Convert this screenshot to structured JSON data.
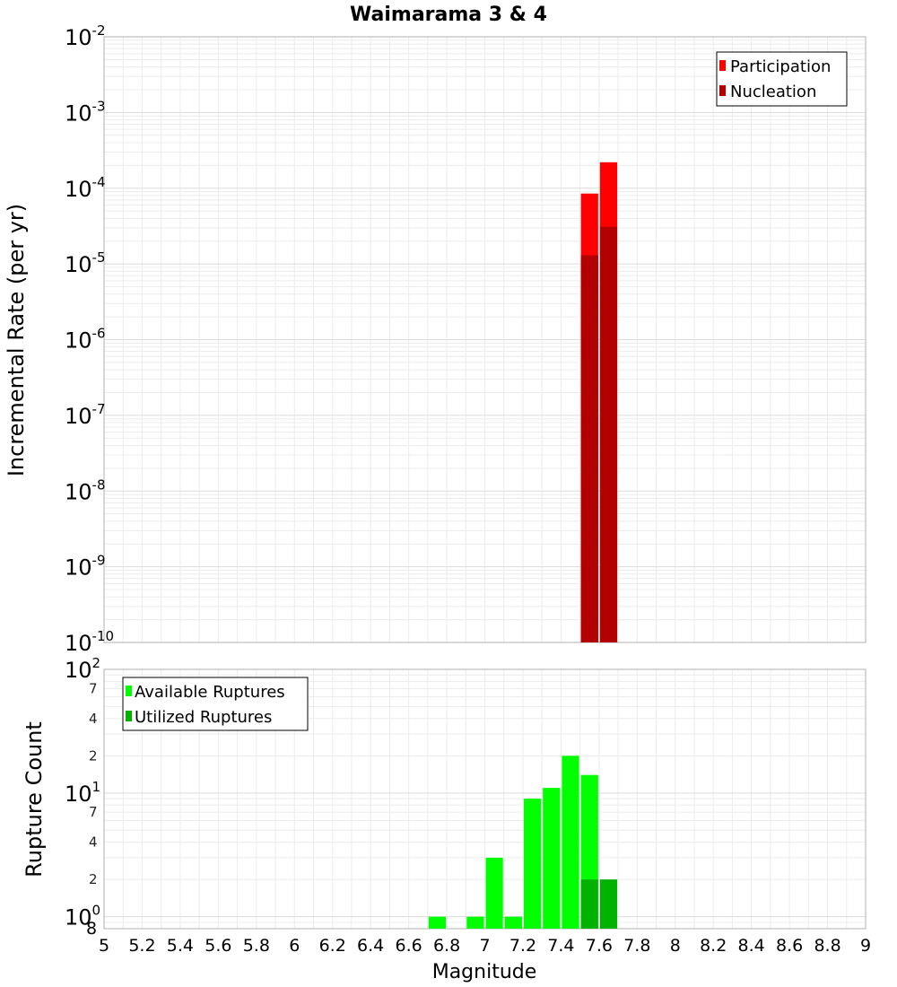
{
  "chart_data": [
    {
      "type": "bar",
      "scale": "log",
      "title": "Waimarama 3 & 4",
      "xlabel": "",
      "ylabel": "Incremental Rate (per yr)",
      "xlim": [
        5,
        9
      ],
      "ylim_exponent": [
        -10,
        -2
      ],
      "y_tick_base": "10",
      "y_tick_exponents": [
        "-10",
        "-9",
        "-8",
        "-7",
        "-6",
        "-5",
        "-4",
        "-3",
        "-2"
      ],
      "bin_width": 0.1,
      "legend": {
        "position": "top-right",
        "entries": [
          {
            "name": "Participation",
            "color": "#ff0000"
          },
          {
            "name": "Nucleation",
            "color": "#b30000"
          }
        ]
      },
      "series": [
        {
          "name": "Participation",
          "color": "#ff0000",
          "x": [
            7.55,
            7.65
          ],
          "values": [
            8.5e-05,
            0.00022
          ]
        },
        {
          "name": "Nucleation",
          "color": "#b30000",
          "x": [
            7.55,
            7.65
          ],
          "values": [
            1.3e-05,
            3.1e-05
          ]
        }
      ]
    },
    {
      "type": "bar",
      "scale": "log",
      "title": "",
      "xlabel": "Magnitude",
      "ylabel": "Rupture Count",
      "xlim": [
        5,
        9
      ],
      "ylim": [
        0.8,
        100
      ],
      "x_ticks": [
        "5",
        "5.2",
        "5.4",
        "5.6",
        "5.8",
        "6",
        "6.2",
        "6.4",
        "6.6",
        "6.8",
        "7",
        "7.2",
        "7.4",
        "7.6",
        "7.8",
        "8",
        "8.2",
        "8.4",
        "8.6",
        "8.8",
        "9"
      ],
      "y_tick_base": "10",
      "y_tick_exponents": [
        "0",
        "1",
        "2"
      ],
      "y_minor_labels": [
        "8",
        "2",
        "4",
        "7",
        "2",
        "4",
        "7"
      ],
      "bin_width": 0.1,
      "legend": {
        "position": "top-left",
        "entries": [
          {
            "name": "Available Ruptures",
            "color": "#00ff00"
          },
          {
            "name": "Utilized Ruptures",
            "color": "#00b300"
          }
        ]
      },
      "series": [
        {
          "name": "Available Ruptures",
          "color": "#00ff00",
          "x": [
            6.75,
            6.95,
            7.05,
            7.15,
            7.25,
            7.35,
            7.45,
            7.55
          ],
          "values": [
            1,
            1,
            3,
            1,
            9,
            11,
            20,
            14
          ]
        },
        {
          "name": "Utilized Ruptures",
          "color": "#00b300",
          "x": [
            7.55,
            7.65
          ],
          "values": [
            2,
            2
          ]
        }
      ]
    }
  ]
}
